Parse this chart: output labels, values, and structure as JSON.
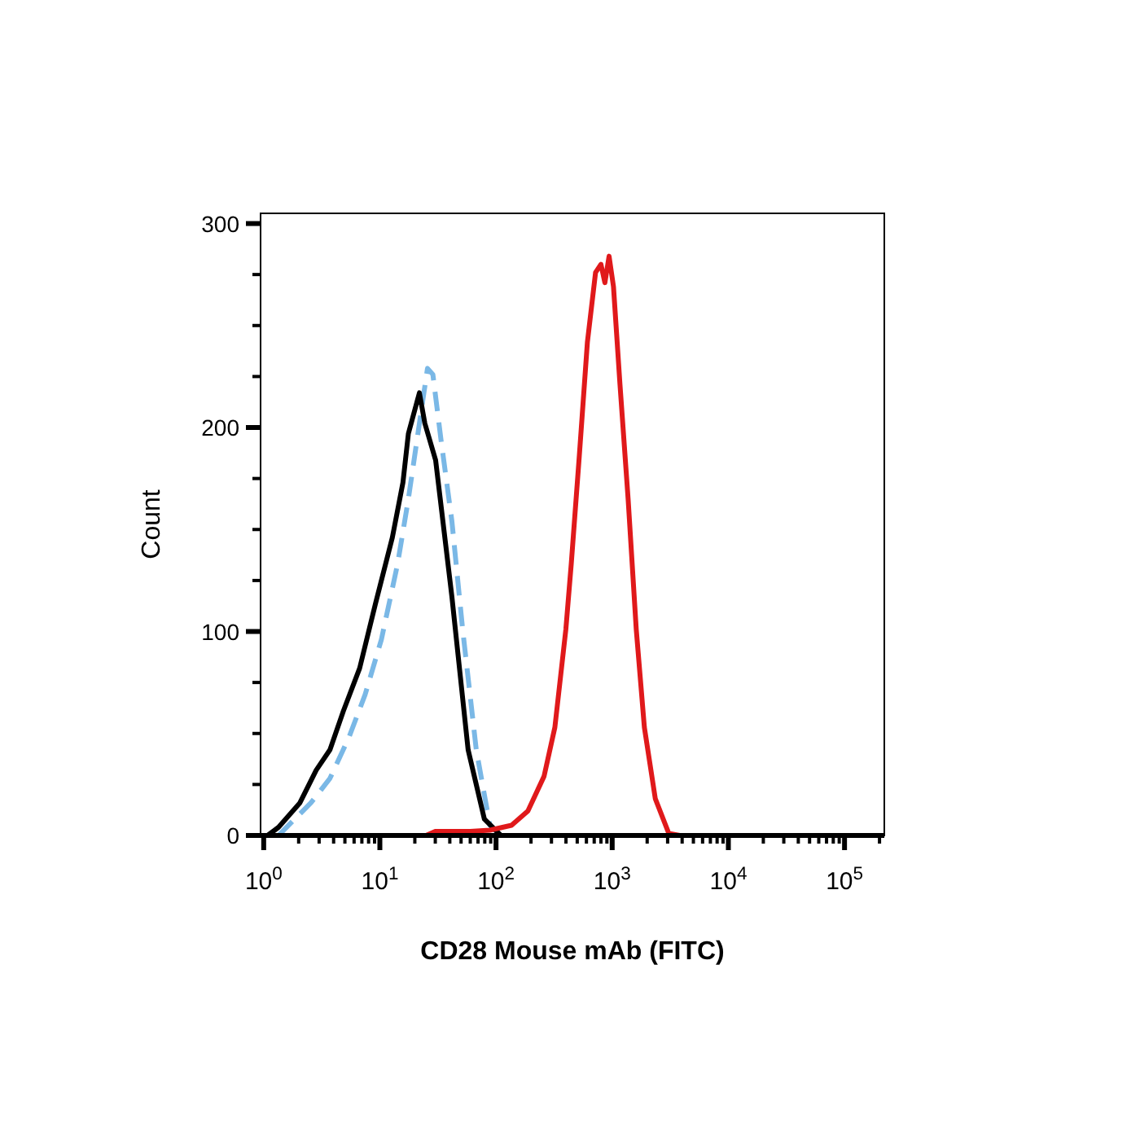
{
  "chart_data": {
    "type": "line",
    "xlabel": "CD28 Mouse mAb (FITC)",
    "ylabel": "Count",
    "log": "x",
    "xlim": [
      0.94,
      220000
    ],
    "ylim": [
      0,
      305
    ],
    "xticks": [
      {
        "value": 1,
        "label": "10$^{0}$"
      },
      {
        "value": 10,
        "label": "10$^{1}$"
      },
      {
        "value": 100,
        "label": "10$^{2}$"
      },
      {
        "value": 1000,
        "label": "10$^{3}$"
      },
      {
        "value": 10000,
        "label": "10$^{4}$"
      },
      {
        "value": 100000,
        "label": "10$^{5}$"
      }
    ],
    "yticks": [
      0,
      {
        "value": 25,
        "label": null
      },
      {
        "value": 50,
        "label": null
      },
      {
        "value": 75,
        "label": null
      },
      100,
      {
        "value": 125,
        "label": null
      },
      {
        "value": 150,
        "label": null
      },
      {
        "value": 175,
        "label": null
      },
      200,
      {
        "value": 225,
        "label": null
      },
      {
        "value": 250,
        "label": null
      },
      {
        "value": 275,
        "label": null
      },
      300
    ],
    "grid": false,
    "series": [
      {
        "color": "#7ab8e6",
        "line_style": "dashed",
        "x": [
          1.34,
          2.55,
          3.72,
          5.41,
          7.46,
          10.3,
          14.2,
          17.6,
          21.9,
          25.7,
          28.6,
          33.6,
          41.7,
          51.6,
          67.6,
          88.5,
          110
        ],
        "values": [
          0,
          16,
          28,
          48,
          69,
          96,
          133,
          165,
          202,
          229,
          226,
          194,
          154,
          101,
          42,
          5,
          0
        ]
      },
      {
        "color": "#000000",
        "line_style": "solid",
        "x": [
          1.08,
          1.34,
          2.05,
          2.83,
          3.72,
          4.85,
          6.7,
          9.2,
          12.8,
          15.8,
          17.6,
          21.9,
          24.4,
          30.2,
          41.7,
          57.5,
          79.4,
          110,
          136
        ],
        "values": [
          0,
          4,
          16,
          32,
          42,
          61,
          82,
          114,
          146,
          173,
          197,
          217,
          202,
          184,
          117,
          42,
          8,
          0,
          0
        ]
      },
      {
        "color": "#e0191b",
        "line_style": "solid",
        "x": [
          1,
          25,
          30,
          60,
          88.5,
          136,
          188,
          259,
          321,
          399,
          444,
          521,
          612,
          719,
          800,
          865,
          940,
          1026,
          1167,
          1371,
          1611,
          1892,
          2350,
          3070,
          3811,
          200000
        ],
        "values": [
          0,
          0,
          2,
          2,
          2.6,
          5,
          12,
          29,
          53,
          101,
          133,
          186,
          242,
          276,
          280,
          271,
          284,
          269,
          221,
          165,
          101,
          53,
          18,
          1,
          0,
          0
        ]
      }
    ]
  }
}
